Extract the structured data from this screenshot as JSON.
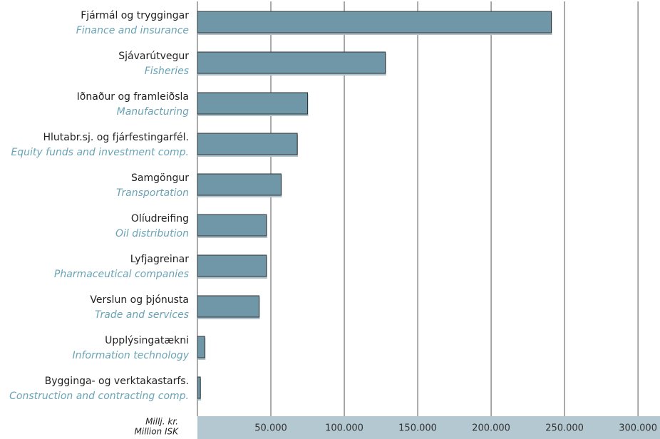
{
  "chart_data": {
    "type": "barh",
    "categories": [
      "Fjármál og tryggingar",
      "Sjávarútvegur",
      "Iðnaður og framleiðsla",
      "Hlutabr.sj. og fjárfestingarfél.",
      "Samgöngur",
      "Olíudreifing",
      "Lyfjagreinar",
      "Verslun og þjónusta",
      "Upplýsingatækni",
      "Bygginga- og verktakastarfs."
    ],
    "categories_en": [
      "Finance and insurance",
      "Fisheries",
      "Manufacturing",
      "Equity funds and investment comp.",
      "Transportation",
      "Oil distribution",
      "Pharmaceutical companies",
      "Trade and services",
      "Information technology",
      "Construction and contracting comp."
    ],
    "values": [
      241000,
      128000,
      75000,
      68000,
      57000,
      47000,
      47000,
      42000,
      5000,
      2000
    ],
    "color": "#6f97a8",
    "shadow_color": "#aec3cd",
    "xlabel": "Millj. kr.",
    "xlabel_en": "Million ISK",
    "xlim": [
      0,
      315000
    ],
    "xticks": [
      {
        "value": 50000,
        "label": "50.000"
      },
      {
        "value": 100000,
        "label": "100.000"
      },
      {
        "value": 150000,
        "label": "150.000"
      },
      {
        "value": 200000,
        "label": "200.000"
      },
      {
        "value": 250000,
        "label": "250.000"
      },
      {
        "value": 300000,
        "label": "300.000"
      }
    ],
    "grid": true
  }
}
